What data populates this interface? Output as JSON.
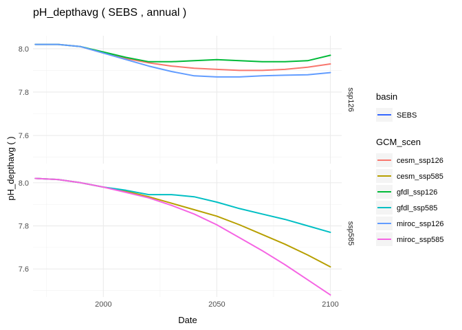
{
  "chart_data": {
    "type": "line",
    "title": "pH_depthavg ( SEBS , annual )",
    "xlabel": "Date",
    "ylabel": "pH_depthavg (  )",
    "xlim": [
      1969,
      2105
    ],
    "x_ticks": [
      2000,
      2050,
      2100
    ],
    "grid": true,
    "legend_placement": "right",
    "panels": [
      {
        "strip": "ssp126",
        "ylim": [
          7.47,
          8.06
        ],
        "y_ticks": [
          7.6,
          7.8,
          8.0
        ],
        "series": [
          {
            "name": "cesm_ssp126",
            "color": "#F8766D",
            "x": [
              1970,
              1980,
              1990,
              2000,
              2010,
              2020,
              2030,
              2040,
              2050,
              2060,
              2070,
              2080,
              2090,
              2100
            ],
            "y": [
              8.02,
              8.02,
              8.01,
              7.98,
              7.955,
              7.935,
              7.92,
              7.91,
              7.905,
              7.9,
              7.9,
              7.905,
              7.915,
              7.93
            ]
          },
          {
            "name": "gfdl_ssp126",
            "color": "#00BA38",
            "x": [
              1970,
              1980,
              1990,
              2000,
              2010,
              2020,
              2030,
              2040,
              2050,
              2060,
              2070,
              2080,
              2090,
              2100
            ],
            "y": [
              8.02,
              8.02,
              8.01,
              7.985,
              7.96,
              7.94,
              7.94,
              7.945,
              7.95,
              7.945,
              7.94,
              7.94,
              7.945,
              7.97
            ]
          },
          {
            "name": "miroc_ssp126",
            "color": "#619CFF",
            "x": [
              1970,
              1980,
              1990,
              2000,
              2010,
              2020,
              2030,
              2040,
              2050,
              2060,
              2070,
              2080,
              2090,
              2100
            ],
            "y": [
              8.02,
              8.02,
              8.01,
              7.98,
              7.95,
              7.92,
              7.895,
              7.875,
              7.87,
              7.87,
              7.875,
              7.878,
              7.88,
              7.89
            ]
          }
        ]
      },
      {
        "strip": "ssp585",
        "ylim": [
          7.47,
          8.06
        ],
        "y_ticks": [
          7.6,
          7.8,
          8.0
        ],
        "series": [
          {
            "name": "cesm_ssp585",
            "color": "#B79F00",
            "x": [
              1970,
              1980,
              1990,
              2000,
              2010,
              2020,
              2030,
              2040,
              2050,
              2060,
              2070,
              2080,
              2090,
              2100
            ],
            "y": [
              8.02,
              8.015,
              8.0,
              7.98,
              7.96,
              7.935,
              7.905,
              7.875,
              7.845,
              7.805,
              7.76,
              7.715,
              7.665,
              7.61
            ]
          },
          {
            "name": "gfdl_ssp585",
            "color": "#00BFC4",
            "x": [
              1970,
              1980,
              1990,
              2000,
              2010,
              2020,
              2030,
              2040,
              2050,
              2060,
              2070,
              2080,
              2090,
              2100
            ],
            "y": [
              8.02,
              8.015,
              8.0,
              7.98,
              7.965,
              7.945,
              7.945,
              7.935,
              7.91,
              7.88,
              7.855,
              7.83,
              7.8,
              7.77
            ]
          },
          {
            "name": "miroc_ssp585",
            "color": "#F564E3",
            "x": [
              1970,
              1980,
              1990,
              2000,
              2010,
              2020,
              2030,
              2040,
              2050,
              2060,
              2070,
              2080,
              2090,
              2100
            ],
            "y": [
              8.02,
              8.015,
              8.0,
              7.98,
              7.955,
              7.93,
              7.895,
              7.855,
              7.805,
              7.745,
              7.685,
              7.62,
              7.55,
              7.48
            ]
          }
        ]
      }
    ],
    "legends": [
      {
        "title": "basin",
        "entries": [
          {
            "label": "SEBS",
            "color": "#3366FF"
          }
        ]
      },
      {
        "title": "GCM_scen",
        "entries": [
          {
            "label": "cesm_ssp126",
            "color": "#F8766D"
          },
          {
            "label": "cesm_ssp585",
            "color": "#B79F00"
          },
          {
            "label": "gfdl_ssp126",
            "color": "#00BA38"
          },
          {
            "label": "gfdl_ssp585",
            "color": "#00BFC4"
          },
          {
            "label": "miroc_ssp126",
            "color": "#619CFF"
          },
          {
            "label": "miroc_ssp585",
            "color": "#F564E3"
          }
        ]
      }
    ]
  }
}
